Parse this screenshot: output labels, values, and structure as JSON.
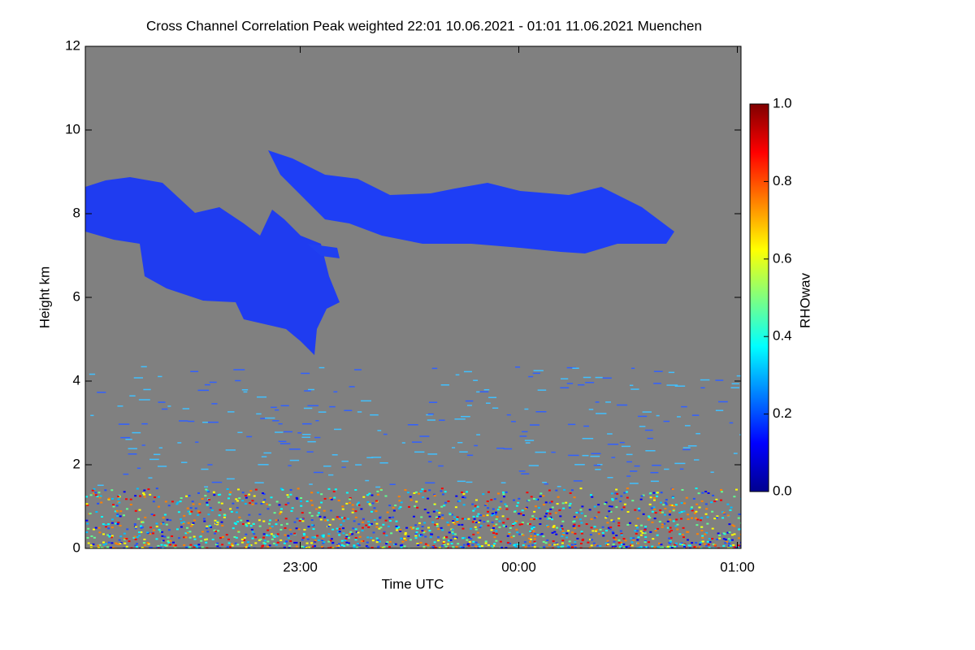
{
  "chart_data": {
    "type": "heatmap",
    "title": "Cross Channel Correlation Peak weighted   22:01 10.06.2021 - 01:01 11.06.2021 Muenchen",
    "xlabel": "Time UTC",
    "ylabel": "Height km",
    "xlim": [
      1321,
      1501
    ],
    "xticks": [
      {
        "value": 1380,
        "label": "23:00"
      },
      {
        "value": 1440,
        "label": "00:00"
      },
      {
        "value": 1500,
        "label": "01:00"
      }
    ],
    "ylim": [
      0,
      12
    ],
    "yticks": [
      0,
      2,
      4,
      6,
      8,
      10,
      12
    ],
    "colorbar": {
      "label": "RHOwav",
      "lim": [
        0,
        1
      ],
      "ticks": [
        {
          "value": 0,
          "label": "0.0"
        },
        {
          "value": 0.2,
          "label": "0.2"
        },
        {
          "value": 0.4,
          "label": "0.4"
        },
        {
          "value": 0.6,
          "label": "0.6"
        },
        {
          "value": 0.8,
          "label": "0.8"
        },
        {
          "value": 1,
          "label": "1.0"
        }
      ]
    }
  }
}
